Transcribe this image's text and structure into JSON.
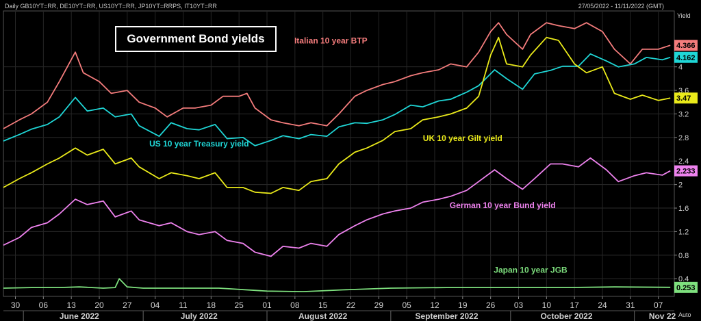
{
  "header": {
    "symbols": "Daily GB10YT=RR, DE10YT=RR, US10YT=RR, JP10YT=RRPS, IT10YT=RR",
    "date_range": "27/05/2022 - 11/11/2022 (GMT)"
  },
  "chart_data": {
    "type": "line",
    "title": "Government Bond yields",
    "y_axis_label": "Yield",
    "y_axis_corner": "Auto",
    "ylim": [
      0.1,
      4.95
    ],
    "y_ticks": [
      "0.4",
      "0.8",
      "1.2",
      "1.6",
      "2",
      "2.4",
      "2.8",
      "3.2",
      "3.6",
      "4"
    ],
    "x_range": [
      "2022-05-27",
      "2022-11-11"
    ],
    "x_ticks": [
      {
        "date": "2022-05-30",
        "label": "30"
      },
      {
        "date": "2022-06-06",
        "label": "06"
      },
      {
        "date": "2022-06-13",
        "label": "13"
      },
      {
        "date": "2022-06-20",
        "label": "20"
      },
      {
        "date": "2022-06-27",
        "label": "27"
      },
      {
        "date": "2022-07-04",
        "label": "04"
      },
      {
        "date": "2022-07-11",
        "label": "11"
      },
      {
        "date": "2022-07-18",
        "label": "18"
      },
      {
        "date": "2022-07-25",
        "label": "25"
      },
      {
        "date": "2022-08-01",
        "label": "01"
      },
      {
        "date": "2022-08-08",
        "label": "08"
      },
      {
        "date": "2022-08-15",
        "label": "15"
      },
      {
        "date": "2022-08-22",
        "label": "22"
      },
      {
        "date": "2022-08-29",
        "label": "29"
      },
      {
        "date": "2022-09-05",
        "label": "05"
      },
      {
        "date": "2022-09-12",
        "label": "12"
      },
      {
        "date": "2022-09-19",
        "label": "19"
      },
      {
        "date": "2022-09-26",
        "label": "26"
      },
      {
        "date": "2022-10-03",
        "label": "03"
      },
      {
        "date": "2022-10-10",
        "label": "10"
      },
      {
        "date": "2022-10-17",
        "label": "17"
      },
      {
        "date": "2022-10-24",
        "label": "24"
      },
      {
        "date": "2022-10-31",
        "label": "31"
      },
      {
        "date": "2022-11-07",
        "label": "07"
      }
    ],
    "months": [
      {
        "date": "2022-06-15",
        "label": "June 2022"
      },
      {
        "date": "2022-07-15",
        "label": "July 2022"
      },
      {
        "date": "2022-08-15",
        "label": "August 2022"
      },
      {
        "date": "2022-09-15",
        "label": "September 2022"
      },
      {
        "date": "2022-10-15",
        "label": "October 2022"
      },
      {
        "date": "2022-11-08",
        "label": "Nov 22"
      }
    ],
    "month_boundaries": [
      "2022-06-01",
      "2022-07-01",
      "2022-08-01",
      "2022-09-01",
      "2022-10-01",
      "2022-11-01"
    ],
    "grid": true,
    "series": [
      {
        "name": "Italian 10 year BTP",
        "color": "#f47c7c",
        "last_label": "4.366",
        "label_anchor": [
          "2022-08-17",
          4.4
        ],
        "points": [
          [
            "2022-05-27",
            2.95
          ],
          [
            "2022-05-31",
            3.1
          ],
          [
            "2022-06-03",
            3.2
          ],
          [
            "2022-06-07",
            3.4
          ],
          [
            "2022-06-10",
            3.75
          ],
          [
            "2022-06-14",
            4.25
          ],
          [
            "2022-06-16",
            3.9
          ],
          [
            "2022-06-20",
            3.75
          ],
          [
            "2022-06-23",
            3.55
          ],
          [
            "2022-06-27",
            3.6
          ],
          [
            "2022-06-30",
            3.4
          ],
          [
            "2022-07-04",
            3.3
          ],
          [
            "2022-07-07",
            3.15
          ],
          [
            "2022-07-11",
            3.3
          ],
          [
            "2022-07-14",
            3.3
          ],
          [
            "2022-07-18",
            3.35
          ],
          [
            "2022-07-21",
            3.5
          ],
          [
            "2022-07-25",
            3.5
          ],
          [
            "2022-07-27",
            3.55
          ],
          [
            "2022-07-29",
            3.3
          ],
          [
            "2022-08-02",
            3.1
          ],
          [
            "2022-08-05",
            3.05
          ],
          [
            "2022-08-09",
            3.0
          ],
          [
            "2022-08-12",
            3.05
          ],
          [
            "2022-08-16",
            3.0
          ],
          [
            "2022-08-19",
            3.2
          ],
          [
            "2022-08-23",
            3.5
          ],
          [
            "2022-08-26",
            3.6
          ],
          [
            "2022-08-30",
            3.7
          ],
          [
            "2022-09-02",
            3.75
          ],
          [
            "2022-09-06",
            3.85
          ],
          [
            "2022-09-09",
            3.9
          ],
          [
            "2022-09-13",
            3.95
          ],
          [
            "2022-09-16",
            4.05
          ],
          [
            "2022-09-20",
            4.0
          ],
          [
            "2022-09-23",
            4.25
          ],
          [
            "2022-09-26",
            4.6
          ],
          [
            "2022-09-28",
            4.75
          ],
          [
            "2022-09-30",
            4.55
          ],
          [
            "2022-10-04",
            4.3
          ],
          [
            "2022-10-06",
            4.55
          ],
          [
            "2022-10-10",
            4.75
          ],
          [
            "2022-10-13",
            4.7
          ],
          [
            "2022-10-17",
            4.65
          ],
          [
            "2022-10-20",
            4.75
          ],
          [
            "2022-10-24",
            4.6
          ],
          [
            "2022-10-27",
            4.3
          ],
          [
            "2022-10-31",
            4.05
          ],
          [
            "2022-11-03",
            4.3
          ],
          [
            "2022-11-07",
            4.3
          ],
          [
            "2022-11-10",
            4.366
          ]
        ]
      },
      {
        "name": "US 10 year Treasury yield",
        "color": "#1fd6d6",
        "last_label": "4.162",
        "label_anchor": [
          "2022-07-15",
          2.65
        ],
        "points": [
          [
            "2022-05-27",
            2.74
          ],
          [
            "2022-05-31",
            2.85
          ],
          [
            "2022-06-03",
            2.94
          ],
          [
            "2022-06-07",
            3.02
          ],
          [
            "2022-06-10",
            3.15
          ],
          [
            "2022-06-14",
            3.48
          ],
          [
            "2022-06-17",
            3.25
          ],
          [
            "2022-06-21",
            3.3
          ],
          [
            "2022-06-24",
            3.15
          ],
          [
            "2022-06-28",
            3.2
          ],
          [
            "2022-06-30",
            3.0
          ],
          [
            "2022-07-05",
            2.82
          ],
          [
            "2022-07-08",
            3.05
          ],
          [
            "2022-07-12",
            2.95
          ],
          [
            "2022-07-15",
            2.93
          ],
          [
            "2022-07-19",
            3.02
          ],
          [
            "2022-07-22",
            2.78
          ],
          [
            "2022-07-26",
            2.8
          ],
          [
            "2022-07-29",
            2.66
          ],
          [
            "2022-08-02",
            2.75
          ],
          [
            "2022-08-05",
            2.83
          ],
          [
            "2022-08-09",
            2.78
          ],
          [
            "2022-08-12",
            2.85
          ],
          [
            "2022-08-16",
            2.82
          ],
          [
            "2022-08-19",
            2.98
          ],
          [
            "2022-08-23",
            3.05
          ],
          [
            "2022-08-26",
            3.04
          ],
          [
            "2022-08-30",
            3.1
          ],
          [
            "2022-09-02",
            3.19
          ],
          [
            "2022-09-06",
            3.35
          ],
          [
            "2022-09-09",
            3.32
          ],
          [
            "2022-09-13",
            3.42
          ],
          [
            "2022-09-16",
            3.45
          ],
          [
            "2022-09-20",
            3.57
          ],
          [
            "2022-09-23",
            3.68
          ],
          [
            "2022-09-27",
            3.95
          ],
          [
            "2022-09-30",
            3.8
          ],
          [
            "2022-10-04",
            3.62
          ],
          [
            "2022-10-07",
            3.88
          ],
          [
            "2022-10-11",
            3.94
          ],
          [
            "2022-10-14",
            4.01
          ],
          [
            "2022-10-18",
            4.01
          ],
          [
            "2022-10-21",
            4.22
          ],
          [
            "2022-10-25",
            4.1
          ],
          [
            "2022-10-28",
            4.0
          ],
          [
            "2022-11-01",
            4.05
          ],
          [
            "2022-11-04",
            4.16
          ],
          [
            "2022-11-08",
            4.12
          ],
          [
            "2022-11-10",
            4.162
          ]
        ]
      },
      {
        "name": "UK 10 year Gilt yield",
        "color": "#eaea1a",
        "last_label": "3.47",
        "label_anchor": [
          "2022-09-19",
          2.74
        ],
        "points": [
          [
            "2022-05-27",
            1.95
          ],
          [
            "2022-05-31",
            2.1
          ],
          [
            "2022-06-03",
            2.2
          ],
          [
            "2022-06-07",
            2.35
          ],
          [
            "2022-06-10",
            2.45
          ],
          [
            "2022-06-14",
            2.62
          ],
          [
            "2022-06-17",
            2.5
          ],
          [
            "2022-06-21",
            2.6
          ],
          [
            "2022-06-24",
            2.35
          ],
          [
            "2022-06-28",
            2.45
          ],
          [
            "2022-06-30",
            2.3
          ],
          [
            "2022-07-05",
            2.1
          ],
          [
            "2022-07-08",
            2.2
          ],
          [
            "2022-07-12",
            2.15
          ],
          [
            "2022-07-15",
            2.1
          ],
          [
            "2022-07-19",
            2.2
          ],
          [
            "2022-07-22",
            1.95
          ],
          [
            "2022-07-26",
            1.95
          ],
          [
            "2022-07-29",
            1.87
          ],
          [
            "2022-08-02",
            1.85
          ],
          [
            "2022-08-05",
            1.95
          ],
          [
            "2022-08-09",
            1.9
          ],
          [
            "2022-08-12",
            2.05
          ],
          [
            "2022-08-16",
            2.1
          ],
          [
            "2022-08-19",
            2.35
          ],
          [
            "2022-08-23",
            2.55
          ],
          [
            "2022-08-26",
            2.62
          ],
          [
            "2022-08-30",
            2.75
          ],
          [
            "2022-09-02",
            2.9
          ],
          [
            "2022-09-06",
            2.95
          ],
          [
            "2022-09-09",
            3.1
          ],
          [
            "2022-09-13",
            3.15
          ],
          [
            "2022-09-16",
            3.2
          ],
          [
            "2022-09-20",
            3.3
          ],
          [
            "2022-09-23",
            3.5
          ],
          [
            "2022-09-26",
            4.2
          ],
          [
            "2022-09-28",
            4.5
          ],
          [
            "2022-09-30",
            4.05
          ],
          [
            "2022-10-04",
            4.0
          ],
          [
            "2022-10-06",
            4.2
          ],
          [
            "2022-10-10",
            4.5
          ],
          [
            "2022-10-13",
            4.45
          ],
          [
            "2022-10-17",
            4.05
          ],
          [
            "2022-10-20",
            3.9
          ],
          [
            "2022-10-24",
            4.0
          ],
          [
            "2022-10-27",
            3.55
          ],
          [
            "2022-10-31",
            3.45
          ],
          [
            "2022-11-03",
            3.52
          ],
          [
            "2022-11-07",
            3.43
          ],
          [
            "2022-11-10",
            3.47
          ]
        ]
      },
      {
        "name": "German 10 year Bund yield",
        "color": "#ee82ee",
        "last_label": "2.233",
        "label_anchor": [
          "2022-09-29",
          1.6
        ],
        "points": [
          [
            "2022-05-27",
            0.97
          ],
          [
            "2022-05-31",
            1.1
          ],
          [
            "2022-06-03",
            1.27
          ],
          [
            "2022-06-07",
            1.35
          ],
          [
            "2022-06-10",
            1.5
          ],
          [
            "2022-06-14",
            1.75
          ],
          [
            "2022-06-17",
            1.66
          ],
          [
            "2022-06-21",
            1.72
          ],
          [
            "2022-06-24",
            1.45
          ],
          [
            "2022-06-28",
            1.55
          ],
          [
            "2022-06-30",
            1.4
          ],
          [
            "2022-07-05",
            1.3
          ],
          [
            "2022-07-08",
            1.35
          ],
          [
            "2022-07-12",
            1.2
          ],
          [
            "2022-07-15",
            1.15
          ],
          [
            "2022-07-19",
            1.2
          ],
          [
            "2022-07-22",
            1.05
          ],
          [
            "2022-07-26",
            1.0
          ],
          [
            "2022-07-29",
            0.85
          ],
          [
            "2022-08-02",
            0.78
          ],
          [
            "2022-08-05",
            0.95
          ],
          [
            "2022-08-09",
            0.92
          ],
          [
            "2022-08-12",
            1.0
          ],
          [
            "2022-08-16",
            0.95
          ],
          [
            "2022-08-19",
            1.15
          ],
          [
            "2022-08-23",
            1.3
          ],
          [
            "2022-08-26",
            1.4
          ],
          [
            "2022-08-30",
            1.5
          ],
          [
            "2022-09-02",
            1.55
          ],
          [
            "2022-09-06",
            1.6
          ],
          [
            "2022-09-09",
            1.7
          ],
          [
            "2022-09-13",
            1.75
          ],
          [
            "2022-09-16",
            1.8
          ],
          [
            "2022-09-20",
            1.9
          ],
          [
            "2022-09-23",
            2.05
          ],
          [
            "2022-09-27",
            2.25
          ],
          [
            "2022-09-30",
            2.1
          ],
          [
            "2022-10-04",
            1.92
          ],
          [
            "2022-10-07",
            2.1
          ],
          [
            "2022-10-11",
            2.35
          ],
          [
            "2022-10-14",
            2.35
          ],
          [
            "2022-10-18",
            2.3
          ],
          [
            "2022-10-21",
            2.45
          ],
          [
            "2022-10-25",
            2.25
          ],
          [
            "2022-10-28",
            2.05
          ],
          [
            "2022-11-01",
            2.15
          ],
          [
            "2022-11-04",
            2.2
          ],
          [
            "2022-11-08",
            2.16
          ],
          [
            "2022-11-10",
            2.233
          ]
        ]
      },
      {
        "name": "Japan 10 year JGB",
        "color": "#7ee07e",
        "last_label": "0.253",
        "label_anchor": [
          "2022-10-06",
          0.5
        ],
        "points": [
          [
            "2022-05-27",
            0.24
          ],
          [
            "2022-06-03",
            0.25
          ],
          [
            "2022-06-10",
            0.25
          ],
          [
            "2022-06-15",
            0.26
          ],
          [
            "2022-06-21",
            0.24
          ],
          [
            "2022-06-24",
            0.25
          ],
          [
            "2022-06-25",
            0.4
          ],
          [
            "2022-06-27",
            0.26
          ],
          [
            "2022-07-01",
            0.24
          ],
          [
            "2022-07-10",
            0.24
          ],
          [
            "2022-07-20",
            0.24
          ],
          [
            "2022-08-01",
            0.19
          ],
          [
            "2022-08-10",
            0.18
          ],
          [
            "2022-08-20",
            0.21
          ],
          [
            "2022-09-01",
            0.24
          ],
          [
            "2022-09-15",
            0.25
          ],
          [
            "2022-10-01",
            0.25
          ],
          [
            "2022-10-15",
            0.25
          ],
          [
            "2022-10-27",
            0.26
          ],
          [
            "2022-11-10",
            0.253
          ]
        ]
      }
    ]
  }
}
